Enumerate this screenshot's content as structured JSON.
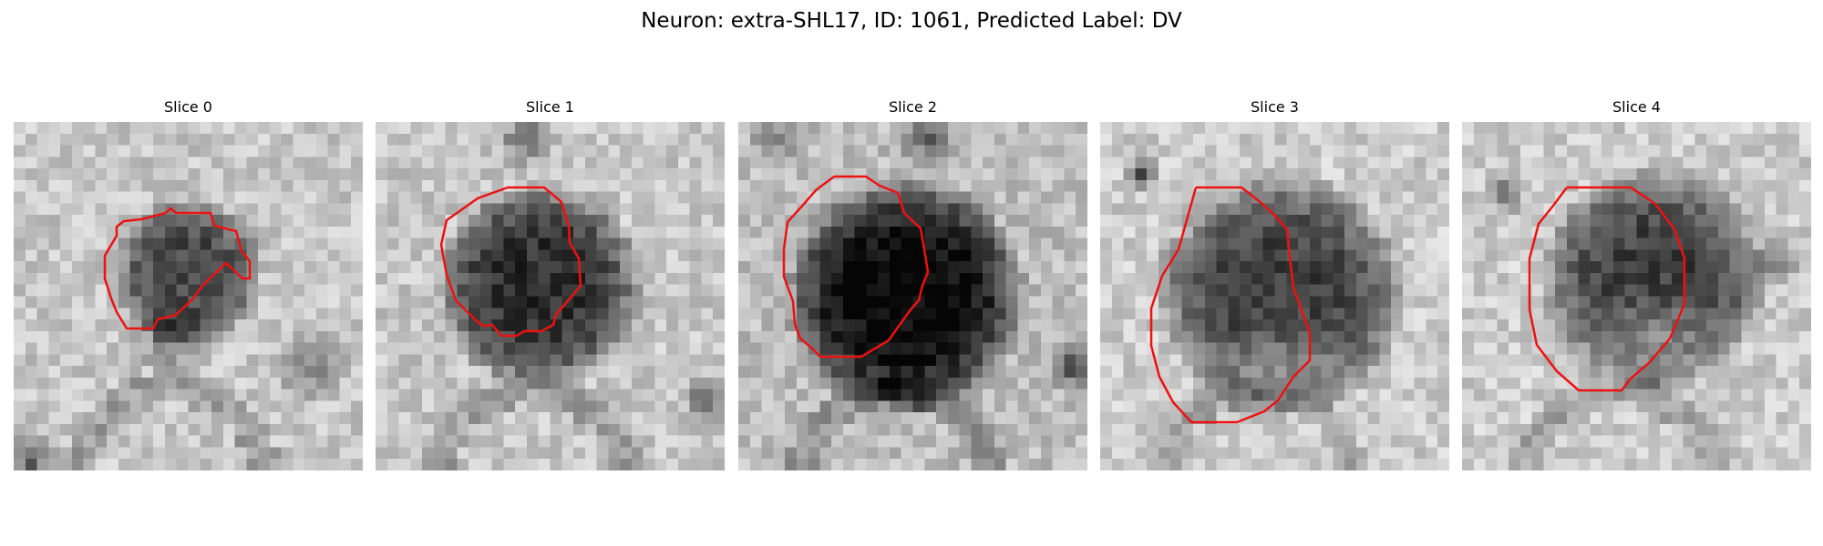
{
  "figure": {
    "title": "Neuron: extra-SHL17, ID: 1061, Predicted Label: DV"
  },
  "colors": {
    "contour": "#ee1111",
    "colormap": "gray"
  },
  "panels": [
    {
      "title": "Slice 0",
      "content": "grayscale microscopy crop, small irregular dark cell body with red outline"
    },
    {
      "title": "Slice 1",
      "content": "grayscale microscopy crop, dark round cell body with red octagonal outline"
    },
    {
      "title": "Slice 2",
      "content": "grayscale microscopy crop, very dark round cell body with red octagonal outline"
    },
    {
      "title": "Slice 3",
      "content": "grayscale microscopy crop, dark cell body with lighter lower half and red octagonal outline"
    },
    {
      "title": "Slice 4",
      "content": "grayscale microscopy crop, dark upper cap over lighter interior with red octagonal outline"
    }
  ]
}
